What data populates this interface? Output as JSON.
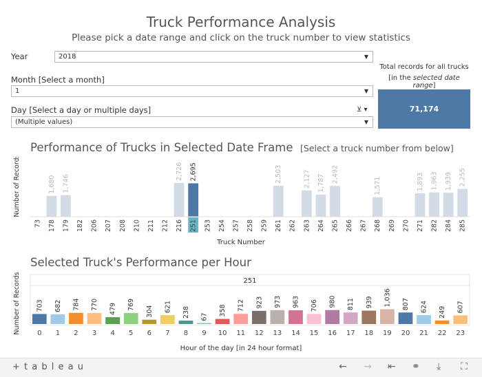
{
  "header": {
    "title": "Truck Performance Analysis",
    "subtitle": "Please pick a date range and click on the truck number to view statistics"
  },
  "filters": {
    "year_label": "Year",
    "year_value": "2018",
    "month_label": "Month [Select a month]",
    "month_value": "1",
    "day_label": "Day [Select a day or multiple days]",
    "day_value": "(Multiple values)"
  },
  "total": {
    "caption_line1": "Total records for all trucks",
    "caption_open": "[in the ",
    "caption_italic": "selected date range",
    "caption_close": "]",
    "value": "71,174"
  },
  "section1": {
    "title": "Performance of Trucks in Selected Date Frame",
    "hint": "[Select a truck number from below]"
  },
  "section2": {
    "title": "Selected Truck's Performance per Hour"
  },
  "colors": {
    "selected": "#4e79a7",
    "unselected": "#d3dce6",
    "label_dim": "#b9b9b9",
    "highlight_band": "#68b5c4"
  },
  "chart_data": [
    {
      "type": "bar",
      "xlabel": "Truck Number",
      "ylabel": "Number of Records",
      "selected_category": "251",
      "categories": [
        "73",
        "178",
        "179",
        "182",
        "206",
        "207",
        "208",
        "210",
        "211",
        "212",
        "216",
        "251",
        "253",
        "254",
        "257",
        "258",
        "259",
        "261",
        "262",
        "263",
        "264",
        "265",
        "266",
        "267",
        "268",
        "269",
        "270",
        "271",
        "282",
        "284",
        "285"
      ],
      "values": [
        0,
        1680,
        1746,
        0,
        0,
        0,
        0,
        0,
        0,
        0,
        2726,
        2695,
        0,
        0,
        0,
        0,
        0,
        2503,
        0,
        2127,
        1787,
        2492,
        0,
        0,
        1571,
        0,
        0,
        1893,
        1963,
        1939,
        2255
      ],
      "value_labels": [
        "",
        "1,680",
        "1,746",
        "",
        "",
        "",
        "",
        "",
        "",
        "",
        "2,726",
        "2,695",
        "",
        "",
        "",
        "",
        "",
        "2,503",
        "",
        "2,127",
        "1,787",
        "2,492",
        "",
        "",
        "1,571",
        "",
        "",
        "1,893",
        "1,963",
        "1,939",
        "2,255"
      ],
      "ylim": [
        0,
        4000
      ]
    },
    {
      "type": "bar",
      "header": "251",
      "xlabel": "Hour of the day [in 24 hour format]",
      "ylabel": "Number of Records",
      "categories": [
        "0",
        "1",
        "2",
        "3",
        "4",
        "5",
        "6",
        "7",
        "8",
        "9",
        "10",
        "11",
        "12",
        "13",
        "14",
        "15",
        "16",
        "17",
        "18",
        "19",
        "20",
        "21",
        "22",
        "23"
      ],
      "values": [
        703,
        682,
        784,
        770,
        479,
        769,
        304,
        621,
        238,
        67,
        358,
        712,
        923,
        973,
        963,
        706,
        980,
        811,
        939,
        1036,
        807,
        624,
        249,
        607
      ],
      "value_labels": [
        "703",
        "682",
        "784",
        "770",
        "479",
        "769",
        "304",
        "621",
        "238",
        "67",
        "358",
        "712",
        "923",
        "973",
        "963",
        "706",
        "980",
        "811",
        "939",
        "1,036",
        "807",
        "624",
        "249",
        "607"
      ],
      "bar_colors": [
        "#4e79a7",
        "#a0cbe8",
        "#f28e2b",
        "#ffbe7d",
        "#59a14f",
        "#8cd17d",
        "#b6992d",
        "#f1ce63",
        "#499894",
        "#86bcb6",
        "#e15759",
        "#ff9d9a",
        "#79706e",
        "#bab0ac",
        "#d37295",
        "#fabfd2",
        "#b07aa1",
        "#d4a6c8",
        "#9d7660",
        "#d7b5a6",
        "#4e79a7",
        "#a0cbe8",
        "#f28e2b",
        "#ffbe7d"
      ],
      "ylim": [
        0,
        2700
      ]
    }
  ],
  "footer": {
    "logo": "+ t a b l e a u",
    "icons": [
      "undo-icon",
      "redo-icon",
      "revert-icon",
      "share-icon",
      "download-icon",
      "fullscreen-icon"
    ]
  }
}
